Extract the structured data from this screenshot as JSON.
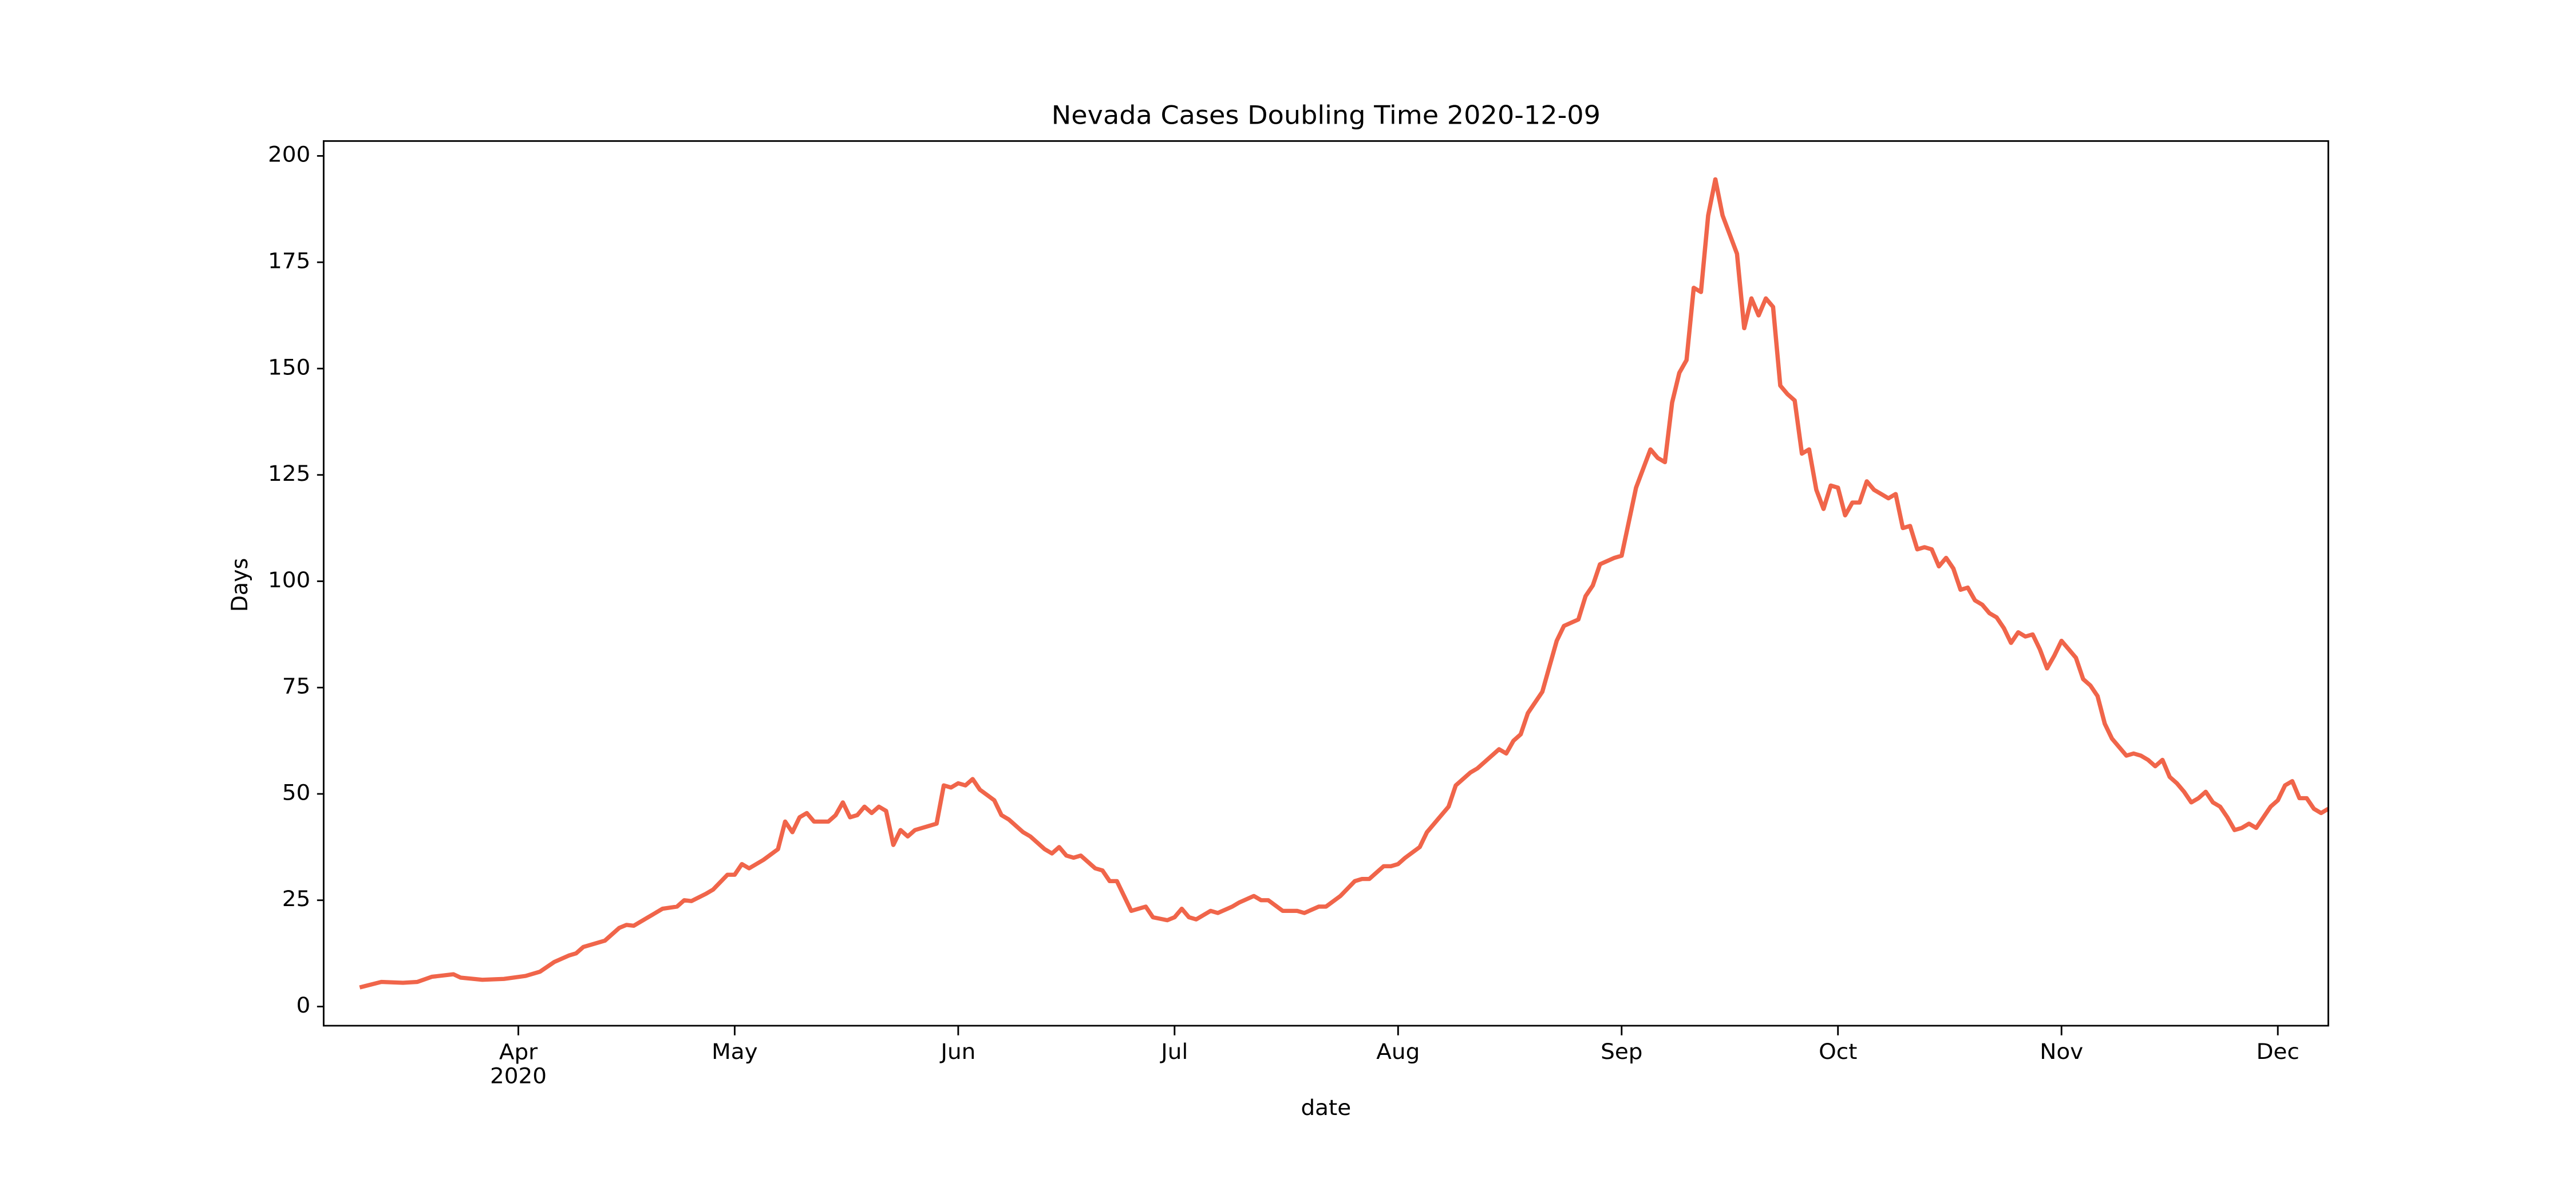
{
  "chart_data": {
    "type": "line",
    "title": "Nevada Cases Doubling Time 2020-12-09",
    "xlabel": "date",
    "ylabel": "Days",
    "xlim": [
      "2020-03-05",
      "2020-12-08"
    ],
    "xticks": [
      {
        "value": "2020-04-01",
        "label": "Apr\n2020"
      },
      {
        "value": "2020-05-01",
        "label": "May"
      },
      {
        "value": "2020-06-01",
        "label": "Jun"
      },
      {
        "value": "2020-07-01",
        "label": "Jul"
      },
      {
        "value": "2020-08-01",
        "label": "Aug"
      },
      {
        "value": "2020-09-01",
        "label": "Sep"
      },
      {
        "value": "2020-10-01",
        "label": "Oct"
      },
      {
        "value": "2020-11-01",
        "label": "Nov"
      },
      {
        "value": "2020-12-01",
        "label": "Dec"
      }
    ],
    "ylim": [
      -4.5,
      203.5
    ],
    "yticks": [
      0,
      25,
      50,
      75,
      100,
      125,
      150,
      175,
      200
    ],
    "grid": false,
    "x": [
      "2020-03-10",
      "2020-03-13",
      "2020-03-16",
      "2020-03-18",
      "2020-03-20",
      "2020-03-23",
      "2020-03-24",
      "2020-03-27",
      "2020-03-30",
      "2020-04-02",
      "2020-04-04",
      "2020-04-06",
      "2020-04-08",
      "2020-04-09",
      "2020-04-10",
      "2020-04-13",
      "2020-04-15",
      "2020-04-16",
      "2020-04-17",
      "2020-04-19",
      "2020-04-21",
      "2020-04-23",
      "2020-04-24",
      "2020-04-25",
      "2020-04-27",
      "2020-04-28",
      "2020-04-30",
      "2020-05-01",
      "2020-05-02",
      "2020-05-03",
      "2020-05-05",
      "2020-05-07",
      "2020-05-08",
      "2020-05-09",
      "2020-05-10",
      "2020-05-11",
      "2020-05-12",
      "2020-05-14",
      "2020-05-15",
      "2020-05-16",
      "2020-05-17",
      "2020-05-18",
      "2020-05-19",
      "2020-05-20",
      "2020-05-21",
      "2020-05-22",
      "2020-05-23",
      "2020-05-24",
      "2020-05-25",
      "2020-05-26",
      "2020-05-28",
      "2020-05-29",
      "2020-05-30",
      "2020-05-31",
      "2020-06-01",
      "2020-06-02",
      "2020-06-03",
      "2020-06-04",
      "2020-06-06",
      "2020-06-07",
      "2020-06-08",
      "2020-06-10",
      "2020-06-11",
      "2020-06-13",
      "2020-06-14",
      "2020-06-15",
      "2020-06-16",
      "2020-06-17",
      "2020-06-18",
      "2020-06-20",
      "2020-06-21",
      "2020-06-22",
      "2020-06-23",
      "2020-06-25",
      "2020-06-27",
      "2020-06-28",
      "2020-06-30",
      "2020-07-01",
      "2020-07-02",
      "2020-07-03",
      "2020-07-04",
      "2020-07-06",
      "2020-07-07",
      "2020-07-09",
      "2020-07-10",
      "2020-07-12",
      "2020-07-13",
      "2020-07-14",
      "2020-07-16",
      "2020-07-18",
      "2020-07-19",
      "2020-07-21",
      "2020-07-22",
      "2020-07-24",
      "2020-07-26",
      "2020-07-27",
      "2020-07-28",
      "2020-07-30",
      "2020-07-31",
      "2020-08-01",
      "2020-08-02",
      "2020-08-04",
      "2020-08-05",
      "2020-08-06",
      "2020-08-08",
      "2020-08-09",
      "2020-08-11",
      "2020-08-12",
      "2020-08-13",
      "2020-08-15",
      "2020-08-16",
      "2020-08-17",
      "2020-08-18",
      "2020-08-19",
      "2020-08-21",
      "2020-08-22",
      "2020-08-23",
      "2020-08-24",
      "2020-08-26",
      "2020-08-27",
      "2020-08-28",
      "2020-08-29",
      "2020-08-31",
      "2020-09-01",
      "2020-09-02",
      "2020-09-03",
      "2020-09-05",
      "2020-09-06",
      "2020-09-07",
      "2020-09-08",
      "2020-09-09",
      "2020-09-10",
      "2020-09-11",
      "2020-09-12",
      "2020-09-13",
      "2020-09-14",
      "2020-09-15",
      "2020-09-16",
      "2020-09-17",
      "2020-09-18",
      "2020-09-19",
      "2020-09-20",
      "2020-09-21",
      "2020-09-22",
      "2020-09-23",
      "2020-09-24",
      "2020-09-25",
      "2020-09-26",
      "2020-09-27",
      "2020-09-28",
      "2020-09-29",
      "2020-09-30",
      "2020-10-01",
      "2020-10-02",
      "2020-10-03",
      "2020-10-04",
      "2020-10-05",
      "2020-10-06",
      "2020-10-07",
      "2020-10-08",
      "2020-10-09",
      "2020-10-10",
      "2020-10-11",
      "2020-10-12",
      "2020-10-13",
      "2020-10-14",
      "2020-10-15",
      "2020-10-16",
      "2020-10-17",
      "2020-10-18",
      "2020-10-19",
      "2020-10-20",
      "2020-10-21",
      "2020-10-22",
      "2020-10-23",
      "2020-10-24",
      "2020-10-25",
      "2020-10-26",
      "2020-10-27",
      "2020-10-28",
      "2020-10-29",
      "2020-10-30",
      "2020-10-31",
      "2020-11-01",
      "2020-11-02",
      "2020-11-03",
      "2020-11-04",
      "2020-11-05",
      "2020-11-06",
      "2020-11-07",
      "2020-11-08",
      "2020-11-09",
      "2020-11-10",
      "2020-11-11",
      "2020-11-12",
      "2020-11-13",
      "2020-11-14",
      "2020-11-15",
      "2020-11-16",
      "2020-11-17",
      "2020-11-18",
      "2020-11-19",
      "2020-11-20",
      "2020-11-21",
      "2020-11-22",
      "2020-11-23",
      "2020-11-24",
      "2020-11-25",
      "2020-11-26",
      "2020-11-27",
      "2020-11-28",
      "2020-11-29",
      "2020-11-30",
      "2020-12-01",
      "2020-12-02",
      "2020-12-03",
      "2020-12-04",
      "2020-12-05",
      "2020-12-06",
      "2020-12-07",
      "2020-12-08"
    ],
    "series": [
      {
        "name": "Days",
        "color": "#f0654a",
        "values": [
          4.5,
          5.8,
          5.6,
          5.8,
          7,
          7.6,
          6.8,
          6.3,
          6.5,
          7.2,
          8.2,
          10.5,
          12,
          12.5,
          14,
          15.5,
          18.5,
          19.2,
          19,
          21,
          23,
          23.5,
          25,
          24.8,
          26.5,
          27.5,
          31,
          31,
          33.5,
          32.5,
          34.5,
          37,
          43.5,
          41,
          44.5,
          45.5,
          43.5,
          43.5,
          45,
          48,
          44.5,
          45,
          47,
          45.5,
          47,
          46,
          38,
          41.5,
          40,
          41.5,
          42.5,
          43,
          52,
          51.5,
          52.5,
          52,
          53.5,
          51,
          48.5,
          45,
          44,
          41,
          40,
          37,
          36,
          37.5,
          35.5,
          35,
          35.5,
          32.5,
          32,
          29.5,
          29.5,
          22.5,
          23.5,
          21,
          20.3,
          21,
          23,
          21,
          20.5,
          22.5,
          22,
          23.5,
          24.5,
          26,
          25,
          25,
          22.5,
          22.5,
          22,
          23.5,
          23.5,
          26,
          29.5,
          30,
          30,
          33,
          33,
          33.5,
          35,
          37.5,
          41,
          43,
          47,
          52,
          55,
          56,
          57.5,
          60.5,
          59.5,
          62.5,
          64,
          69,
          74,
          80,
          86,
          89.5,
          91,
          96.5,
          99,
          104,
          105.5,
          106,
          114,
          122,
          131,
          129,
          128,
          142,
          149,
          152,
          169,
          168,
          186,
          194.5,
          186,
          181.5,
          177,
          159.5,
          166.5,
          162.5,
          166.5,
          164.5,
          146,
          144,
          142.5,
          130,
          131,
          121.5,
          117,
          122.5,
          122,
          115.5,
          118.5,
          118.5,
          123.5,
          121.5,
          120.5,
          119.5,
          120.5,
          112.5,
          113,
          107.5,
          108,
          107.5,
          103.5,
          105.5,
          103,
          98,
          98.5,
          95.5,
          94.5,
          92.5,
          91.5,
          89,
          85.5,
          88,
          87,
          87.5,
          84,
          79.5,
          82.5,
          86,
          84,
          82,
          77,
          75.5,
          73,
          66.5,
          63,
          61,
          59,
          59.5,
          59,
          58,
          56.5,
          58,
          54,
          52.5,
          50.5,
          48,
          49,
          50.5,
          48,
          47,
          44.5,
          41.5,
          42,
          43,
          42,
          44.5,
          47,
          48.5,
          52,
          53,
          49,
          49,
          46.5,
          45.5,
          46.5
        ]
      }
    ]
  }
}
